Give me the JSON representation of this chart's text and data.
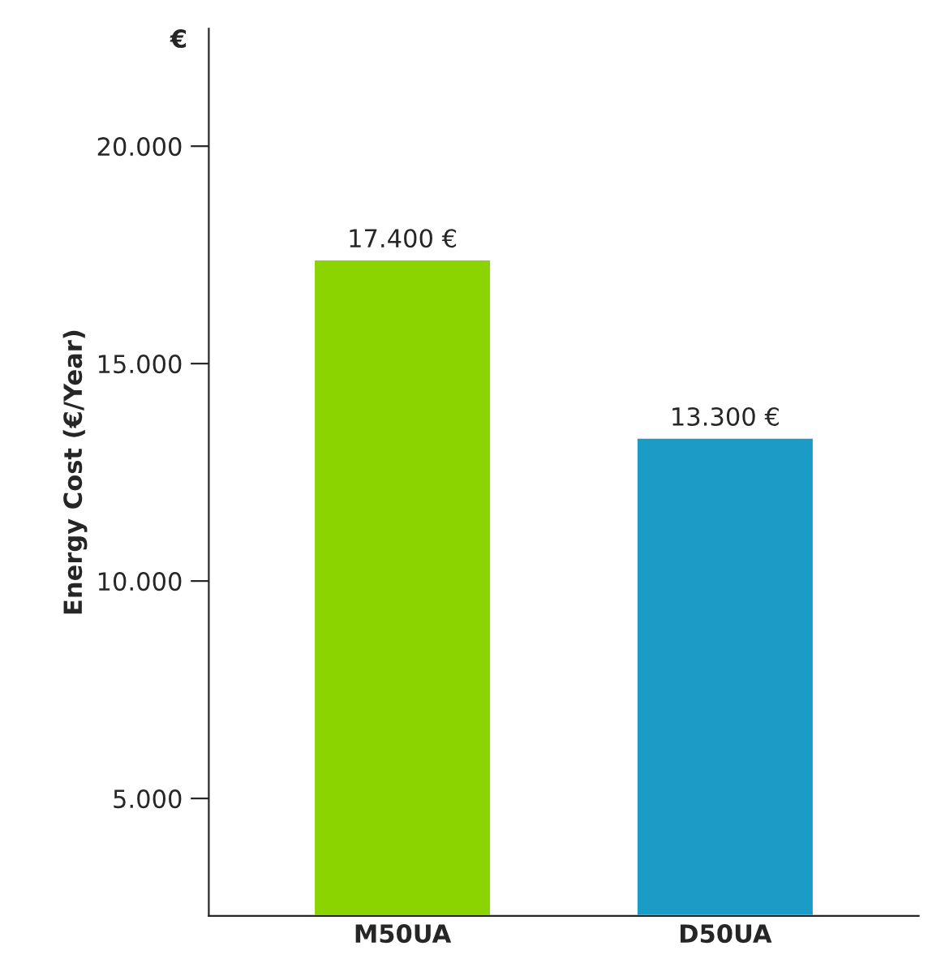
{
  "chart_data": {
    "type": "bar",
    "ylabel": "Energy Cost (€/Year)",
    "annotations": [
      "€"
    ],
    "categories": [
      "M50UA",
      "D50UA"
    ],
    "values": [
      17400,
      13300
    ],
    "colors": [
      "#8cd400",
      "#1a9cc6"
    ],
    "value_labels": [
      "17.400 €",
      "13.300 €"
    ],
    "ylim": [
      2300,
      22700
    ],
    "yticks": [
      {
        "value": 5000,
        "label": "5.000"
      },
      {
        "value": 10000,
        "label": "10.000"
      },
      {
        "value": 15000,
        "label": "15.000"
      },
      {
        "value": 20000,
        "label": "20.000"
      }
    ],
    "grid": false,
    "legend": false
  }
}
